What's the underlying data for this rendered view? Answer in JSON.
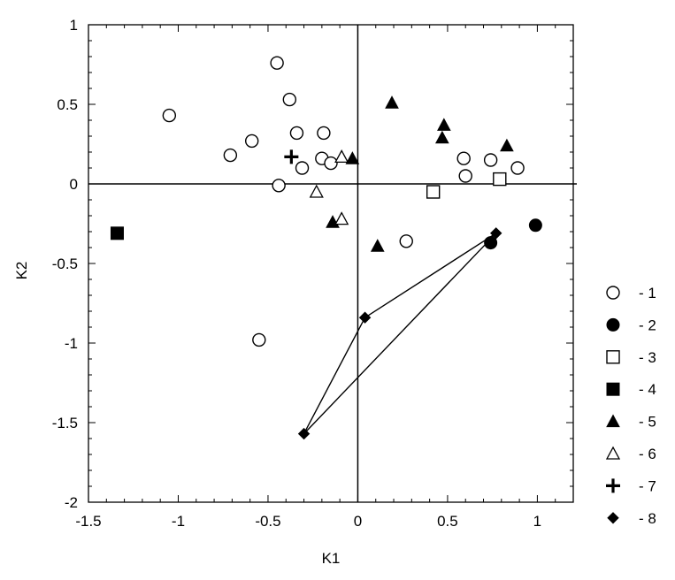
{
  "chart_data": {
    "type": "scatter",
    "title": "",
    "xlabel": "K1",
    "ylabel": "K2",
    "xlim": [
      -1.5,
      1.2
    ],
    "ylim": [
      -2,
      1
    ],
    "x_ticks": [
      -1.5,
      -1,
      -0.5,
      0,
      0.5,
      1
    ],
    "x_tick_labels": [
      "-1.5",
      "-1",
      "-0.5",
      "0",
      "0.5",
      "1"
    ],
    "y_ticks": [
      1,
      0.5,
      0,
      -0.5,
      -1,
      -1.5,
      -2
    ],
    "y_tick_labels": [
      "1",
      "0.5",
      "0",
      "-0.5",
      "-1",
      "-1.5",
      "-2"
    ],
    "minor_tick_step": 0.1,
    "zero_lines": true,
    "legend_position": "right",
    "series": [
      {
        "name": "- 1",
        "marker": "circle-open",
        "points": [
          [
            -1.05,
            0.43
          ],
          [
            -0.45,
            0.76
          ],
          [
            -0.38,
            0.53
          ],
          [
            -0.34,
            0.32
          ],
          [
            -0.19,
            0.32
          ],
          [
            -0.59,
            0.27
          ],
          [
            -0.71,
            0.18
          ],
          [
            -0.2,
            0.16
          ],
          [
            -0.15,
            0.13
          ],
          [
            -0.31,
            0.1
          ],
          [
            -0.44,
            -0.01
          ],
          [
            0.59,
            0.16
          ],
          [
            0.74,
            0.15
          ],
          [
            0.89,
            0.1
          ],
          [
            0.6,
            0.05
          ],
          [
            0.27,
            -0.36
          ],
          [
            -0.55,
            -0.98
          ]
        ]
      },
      {
        "name": "- 2",
        "marker": "circle-filled",
        "points": [
          [
            0.99,
            -0.26
          ],
          [
            0.74,
            -0.37
          ]
        ]
      },
      {
        "name": "- 3",
        "marker": "square-open",
        "points": [
          [
            0.42,
            -0.05
          ],
          [
            0.79,
            0.03
          ]
        ]
      },
      {
        "name": "- 4",
        "marker": "square-filled",
        "points": [
          [
            -1.34,
            -0.31
          ]
        ]
      },
      {
        "name": "- 5",
        "marker": "triangle-filled",
        "points": [
          [
            0.19,
            0.51
          ],
          [
            0.48,
            0.37
          ],
          [
            0.47,
            0.29
          ],
          [
            0.83,
            0.24
          ],
          [
            -0.03,
            0.16
          ],
          [
            -0.14,
            -0.24
          ],
          [
            0.11,
            -0.39
          ]
        ]
      },
      {
        "name": "- 6",
        "marker": "triangle-open",
        "points": [
          [
            -0.09,
            0.17
          ],
          [
            -0.23,
            -0.05
          ],
          [
            -0.09,
            -0.22
          ]
        ]
      },
      {
        "name": "- 7",
        "marker": "plus",
        "points": [
          [
            -0.37,
            0.17
          ]
        ]
      },
      {
        "name": "- 8",
        "marker": "diamond-filled",
        "points": [
          [
            0.77,
            -0.31
          ],
          [
            0.04,
            -0.84
          ],
          [
            -0.3,
            -1.57
          ]
        ]
      }
    ],
    "polygons": [
      {
        "points": [
          [
            0.77,
            -0.31
          ],
          [
            0.04,
            -0.84
          ],
          [
            -0.3,
            -1.57
          ]
        ]
      }
    ]
  }
}
